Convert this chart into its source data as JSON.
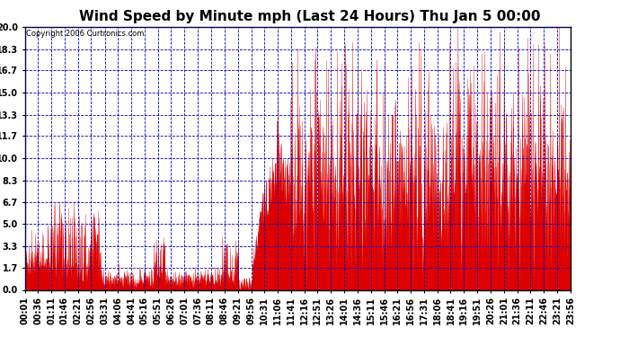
{
  "title": "Wind Speed by Minute mph (Last 24 Hours) Thu Jan 5 00:00",
  "copyright": "Copyright 2006 Curtronics.com",
  "ylabel_values": [
    0.0,
    1.7,
    3.3,
    5.0,
    6.7,
    8.3,
    10.0,
    11.7,
    13.3,
    15.0,
    16.7,
    18.3,
    20.0
  ],
  "ylim": [
    0,
    20.0
  ],
  "background_color": "#ffffff",
  "plot_bg_color": "#ffffff",
  "grid_color": "#0000bb",
  "bar_color": "#dd0000",
  "title_fontsize": 11,
  "tick_fontsize": 7,
  "copyright_fontsize": 6,
  "n_minutes": 1440,
  "x_tick_labels": [
    "00:01",
    "00:36",
    "01:11",
    "01:46",
    "02:21",
    "02:56",
    "03:31",
    "04:06",
    "04:41",
    "05:16",
    "05:51",
    "06:26",
    "07:01",
    "07:36",
    "08:11",
    "08:46",
    "09:21",
    "09:56",
    "10:31",
    "11:06",
    "11:41",
    "12:16",
    "12:51",
    "13:26",
    "14:01",
    "14:36",
    "15:11",
    "15:46",
    "16:21",
    "16:56",
    "17:31",
    "18:06",
    "18:41",
    "19:16",
    "19:51",
    "20:26",
    "21:01",
    "21:36",
    "22:11",
    "22:46",
    "23:21",
    "23:56"
  ]
}
